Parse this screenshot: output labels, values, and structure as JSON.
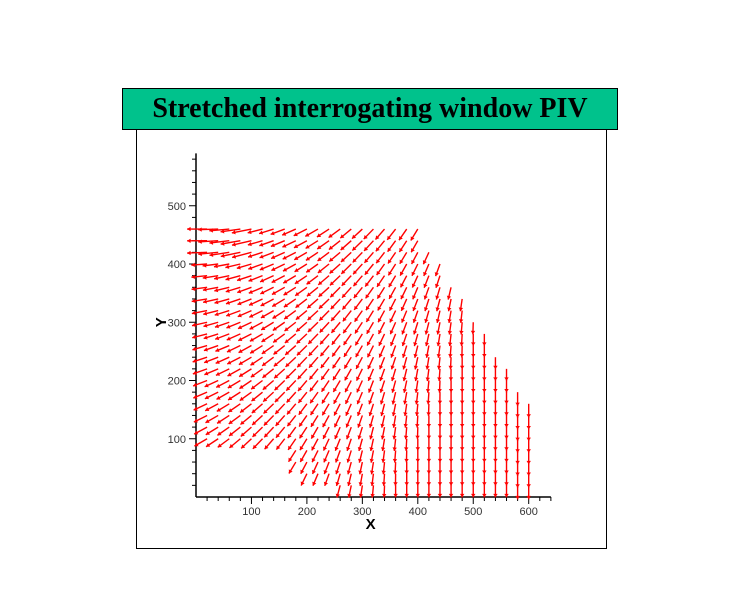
{
  "title": "Stretched interrogating window PIV",
  "colors": {
    "banner": "#00c28c",
    "vectors": "#ff0000",
    "axes": "#000000"
  },
  "chart_data": {
    "type": "vector_field",
    "title": "Stretched interrogating window PIV",
    "xlabel": "X",
    "ylabel": "Y",
    "xlim": [
      0,
      640
    ],
    "ylim": [
      0,
      590
    ],
    "xticks": [
      100,
      200,
      300,
      400,
      500,
      600
    ],
    "yticks": [
      100,
      200,
      300,
      400,
      500
    ],
    "grid": false,
    "legend": "none",
    "field": {
      "grid_spacing_x": 20,
      "grid_spacing_y": 20,
      "description_of_flow": "horizontal flow toward -x on the upper left, turning downward toward -y near the right/lower region",
      "boundary_top_y": 460,
      "corner_x": 400,
      "diagonal_end": [
        510,
        300
      ],
      "right_boundary_x": [
        530,
        600
      ],
      "lower_left_empty_until_x": 200
    }
  }
}
